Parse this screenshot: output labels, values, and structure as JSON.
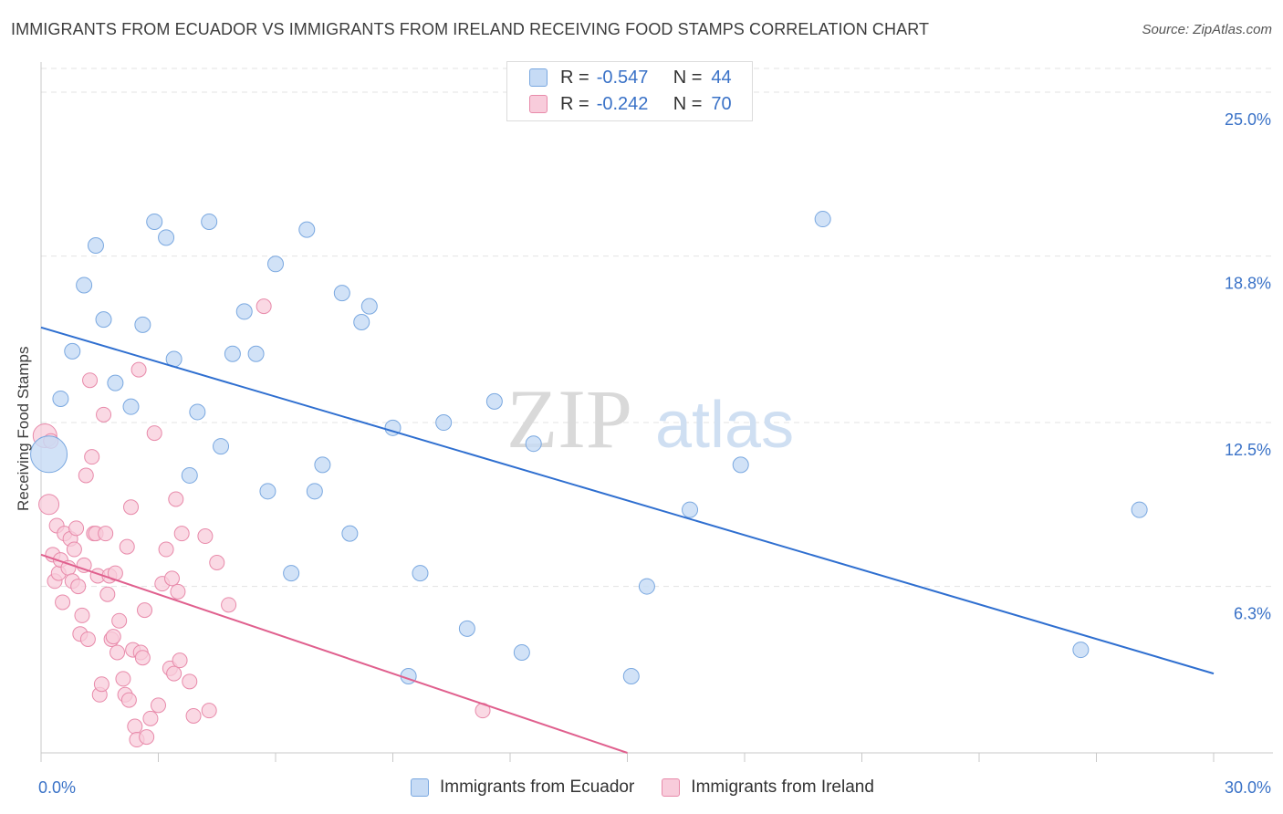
{
  "title": "IMMIGRANTS FROM ECUADOR VS IMMIGRANTS FROM IRELAND RECEIVING FOOD STAMPS CORRELATION CHART",
  "source": "Source: ZipAtlas.com",
  "legend": {
    "rows": [
      {
        "r_label": "R =",
        "r_value": "-0.547",
        "n_label": "N =",
        "n_value": "44"
      },
      {
        "r_label": "R =",
        "r_value": "-0.242",
        "n_label": "N =",
        "n_value": "70"
      }
    ]
  },
  "bottom_legend": {
    "ecuador": "Immigrants from Ecuador",
    "ireland": "Immigrants from Ireland"
  },
  "watermark": {
    "zip": "ZIP",
    "atlas": "atlas"
  },
  "colors": {
    "ecuador_fill": "#c6dbf5",
    "ecuador_stroke": "#7aa8e0",
    "ecuador_line": "#2f6fd0",
    "ireland_fill": "#f8ccdb",
    "ireland_stroke": "#e88aaa",
    "ireland_line": "#e0608e",
    "tick_text": "#3a72c7"
  },
  "chart_data": {
    "type": "scatter",
    "title": "IMMIGRANTS FROM ECUADOR VS IMMIGRANTS FROM IRELAND RECEIVING FOOD STAMPS CORRELATION CHART",
    "xlabel": "",
    "ylabel": "Receiving Food Stamps",
    "xlim": [
      0,
      30
    ],
    "ylim": [
      0,
      25.9
    ],
    "x_tick_labels": [
      "0.0%",
      "30.0%"
    ],
    "y_ticks": [
      6.3,
      12.5,
      18.8,
      25.0
    ],
    "y_tick_labels": [
      "6.3%",
      "12.5%",
      "18.8%",
      "25.0%"
    ],
    "series": [
      {
        "name": "Immigrants from Ecuador",
        "r": -0.547,
        "n": 44,
        "trend": {
          "x0": 0,
          "y0": 16.1,
          "x1": 30,
          "y1": 3.0
        },
        "points": [
          [
            0.2,
            11.3
          ],
          [
            0.5,
            13.4
          ],
          [
            0.8,
            15.2
          ],
          [
            1.1,
            17.7
          ],
          [
            1.4,
            19.2
          ],
          [
            1.6,
            16.4
          ],
          [
            1.9,
            14.0
          ],
          [
            2.3,
            13.1
          ],
          [
            2.6,
            16.2
          ],
          [
            2.9,
            20.1
          ],
          [
            3.2,
            19.5
          ],
          [
            3.4,
            14.9
          ],
          [
            3.8,
            10.5
          ],
          [
            4.0,
            12.9
          ],
          [
            4.3,
            20.1
          ],
          [
            4.6,
            11.6
          ],
          [
            4.9,
            15.1
          ],
          [
            5.2,
            16.7
          ],
          [
            5.5,
            15.1
          ],
          [
            5.8,
            9.9
          ],
          [
            6.0,
            18.5
          ],
          [
            6.4,
            6.8
          ],
          [
            6.8,
            19.8
          ],
          [
            7.0,
            9.9
          ],
          [
            7.2,
            10.9
          ],
          [
            7.7,
            17.4
          ],
          [
            7.9,
            8.3
          ],
          [
            8.2,
            16.3
          ],
          [
            8.4,
            16.9
          ],
          [
            9.0,
            12.3
          ],
          [
            9.4,
            2.9
          ],
          [
            9.7,
            6.8
          ],
          [
            10.3,
            12.5
          ],
          [
            10.9,
            4.7
          ],
          [
            11.6,
            13.3
          ],
          [
            12.3,
            3.8
          ],
          [
            12.6,
            11.7
          ],
          [
            15.1,
            2.9
          ],
          [
            15.5,
            6.3
          ],
          [
            16.6,
            9.2
          ],
          [
            17.9,
            10.9
          ],
          [
            20.0,
            20.2
          ],
          [
            26.6,
            3.9
          ],
          [
            28.1,
            9.2
          ]
        ]
      },
      {
        "name": "Immigrants from Ireland",
        "r": -0.242,
        "n": 70,
        "trend": {
          "x0": 0,
          "y0": 7.5,
          "x1": 15.0,
          "y1": 0.0
        },
        "points": [
          [
            0.1,
            12.0
          ],
          [
            0.2,
            9.4
          ],
          [
            0.25,
            11.8
          ],
          [
            0.3,
            7.5
          ],
          [
            0.35,
            6.5
          ],
          [
            0.4,
            8.6
          ],
          [
            0.45,
            6.8
          ],
          [
            0.5,
            7.3
          ],
          [
            0.55,
            5.7
          ],
          [
            0.6,
            8.3
          ],
          [
            0.7,
            7.0
          ],
          [
            0.75,
            8.1
          ],
          [
            0.8,
            6.5
          ],
          [
            0.85,
            7.7
          ],
          [
            0.9,
            8.5
          ],
          [
            0.95,
            6.3
          ],
          [
            1.0,
            4.5
          ],
          [
            1.05,
            5.2
          ],
          [
            1.1,
            7.1
          ],
          [
            1.15,
            10.5
          ],
          [
            1.2,
            4.3
          ],
          [
            1.25,
            14.1
          ],
          [
            1.3,
            11.2
          ],
          [
            1.35,
            8.3
          ],
          [
            1.4,
            8.3
          ],
          [
            1.45,
            6.7
          ],
          [
            1.5,
            2.2
          ],
          [
            1.55,
            2.6
          ],
          [
            1.6,
            12.8
          ],
          [
            1.65,
            8.3
          ],
          [
            1.7,
            6.0
          ],
          [
            1.75,
            6.7
          ],
          [
            1.8,
            4.3
          ],
          [
            1.85,
            4.4
          ],
          [
            1.9,
            6.8
          ],
          [
            1.95,
            3.8
          ],
          [
            2.0,
            5.0
          ],
          [
            2.1,
            2.8
          ],
          [
            2.15,
            2.2
          ],
          [
            2.2,
            7.8
          ],
          [
            2.25,
            2.0
          ],
          [
            2.3,
            9.3
          ],
          [
            2.35,
            3.9
          ],
          [
            2.4,
            1.0
          ],
          [
            2.45,
            0.5
          ],
          [
            2.5,
            14.5
          ],
          [
            2.55,
            3.8
          ],
          [
            2.6,
            3.6
          ],
          [
            2.65,
            5.4
          ],
          [
            2.7,
            0.6
          ],
          [
            2.8,
            1.3
          ],
          [
            2.9,
            12.1
          ],
          [
            3.0,
            1.8
          ],
          [
            3.1,
            6.4
          ],
          [
            3.2,
            7.7
          ],
          [
            3.3,
            3.2
          ],
          [
            3.35,
            6.6
          ],
          [
            3.4,
            3.0
          ],
          [
            3.45,
            9.6
          ],
          [
            3.5,
            6.1
          ],
          [
            3.55,
            3.5
          ],
          [
            3.6,
            8.3
          ],
          [
            3.8,
            2.7
          ],
          [
            3.9,
            1.4
          ],
          [
            4.2,
            8.2
          ],
          [
            4.3,
            1.6
          ],
          [
            4.5,
            7.2
          ],
          [
            4.8,
            5.6
          ],
          [
            5.7,
            16.9
          ],
          [
            11.3,
            1.6
          ]
        ]
      }
    ]
  }
}
